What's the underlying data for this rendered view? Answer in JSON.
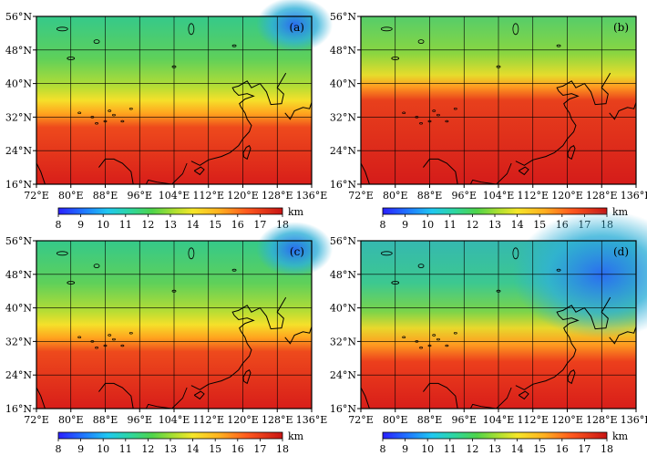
{
  "figure": {
    "description": "Four-panel map figure over East Asia with shared colorbar per panel",
    "colorbar": {
      "ticks": [
        "8",
        "9",
        "10",
        "11",
        "12",
        "13",
        "14",
        "15",
        "16",
        "17",
        "18"
      ],
      "unit": "km",
      "colors": [
        "#1f3cff",
        "#1f9bff",
        "#2fd6d6",
        "#3ad07a",
        "#7cdc3a",
        "#c8e02e",
        "#f5e62a",
        "#ffb020",
        "#ff6a1e",
        "#e8331a",
        "#d41a1a"
      ]
    },
    "axes": {
      "lat_labels": [
        "56°N",
        "48°N",
        "40°N",
        "32°N",
        "24°N",
        "16°N"
      ],
      "lon_labels": [
        "72°E",
        "80°E",
        "88°E",
        "96°E",
        "104°E",
        "112°E",
        "120°E",
        "128°E",
        "136°E"
      ],
      "lon_range": [
        72,
        136
      ],
      "lat_range": [
        16,
        56
      ]
    },
    "panels": [
      {
        "id": "a",
        "label": "(a)",
        "boundary_lat": 34,
        "north_scheme": "green",
        "blue_patch": true
      },
      {
        "id": "b",
        "label": "(b)",
        "boundary_lat": 41,
        "north_scheme": "green",
        "blue_patch": false
      },
      {
        "id": "c",
        "label": "(c)",
        "boundary_lat": 36,
        "north_scheme": "green",
        "blue_patch": true
      },
      {
        "id": "d",
        "label": "(d)",
        "boundary_lat": 33,
        "north_scheme": "green-blue",
        "blue_patch": true
      }
    ]
  }
}
